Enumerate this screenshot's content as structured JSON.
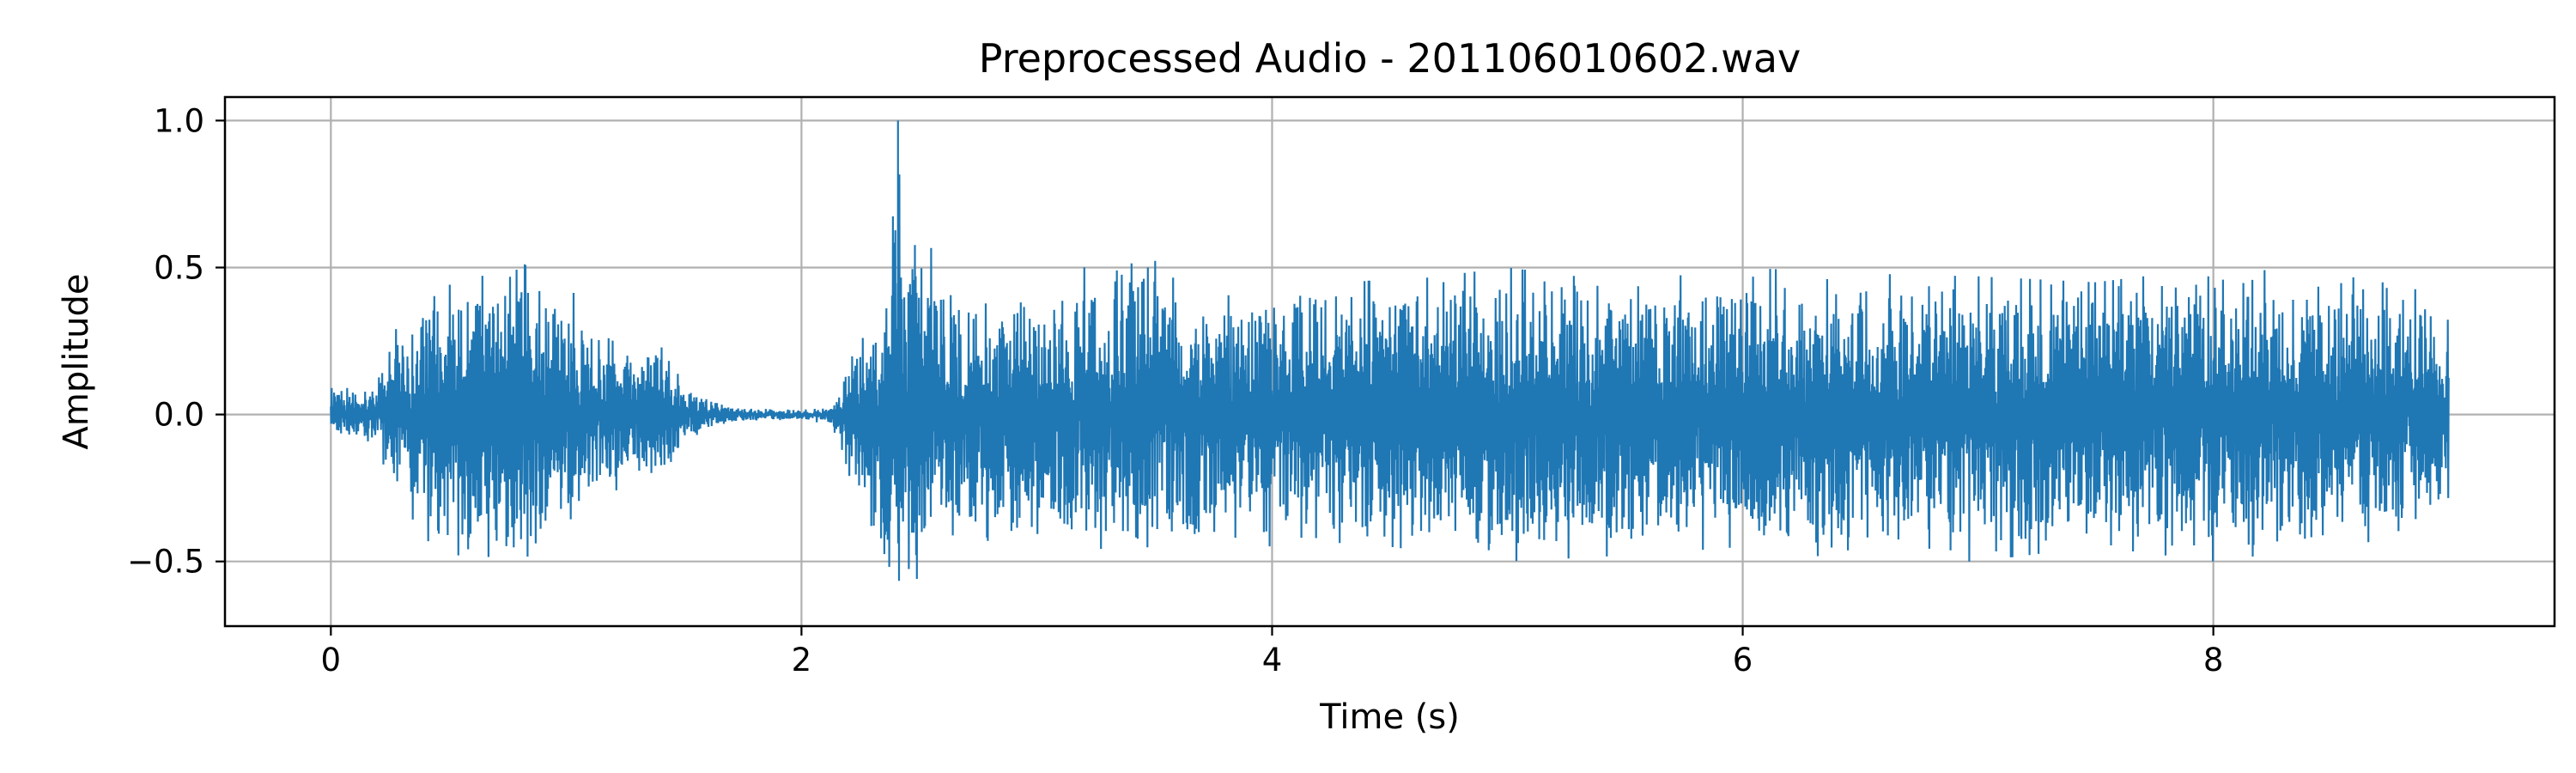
{
  "chart_data": {
    "type": "line",
    "title": "Preprocessed Audio - 201106010602.wav",
    "xlabel": "Time (s)",
    "ylabel": "Amplitude",
    "xlim": [
      -0.45,
      9.45
    ],
    "ylim": [
      -0.72,
      1.08
    ],
    "xticks": [
      0,
      2,
      4,
      6,
      8
    ],
    "xtick_labels": [
      "0",
      "2",
      "4",
      "6",
      "8"
    ],
    "yticks": [
      -0.5,
      0.0,
      0.5,
      1.0
    ],
    "ytick_labels": [
      "−0.5",
      "0.0",
      "0.5",
      "1.0"
    ],
    "grid": true,
    "legend": "none",
    "colors": {
      "line": "#1f77b4",
      "grid": "#b0b0b0",
      "axes": "#000000"
    },
    "series": [
      {
        "duration_s": 9.0,
        "envelope": {
          "t": [
            0.0,
            0.1,
            0.2,
            0.25,
            0.3,
            0.4,
            0.5,
            0.6,
            0.7,
            0.8,
            0.9,
            1.0,
            1.05,
            1.1,
            1.2,
            1.3,
            1.4,
            1.5,
            1.6,
            1.7,
            1.8,
            1.9,
            2.0,
            2.1,
            2.15,
            2.2,
            2.25,
            2.3,
            2.35,
            2.4,
            2.45,
            2.5,
            2.55,
            2.6,
            2.7,
            2.8,
            3.0,
            3.2,
            3.4,
            3.6,
            3.8,
            4.0,
            4.5,
            5.0,
            5.5,
            6.0,
            6.5,
            7.0,
            7.5,
            8.0,
            8.5,
            8.8,
            9.0
          ],
          "max": [
            0.09,
            0.09,
            0.12,
            0.28,
            0.3,
            0.4,
            0.5,
            0.45,
            0.5,
            0.53,
            0.45,
            0.5,
            0.38,
            0.3,
            0.25,
            0.22,
            0.25,
            0.1,
            0.05,
            0.03,
            0.02,
            0.02,
            0.02,
            0.02,
            0.05,
            0.2,
            0.25,
            0.3,
            0.3,
            1.0,
            0.57,
            0.58,
            0.57,
            0.42,
            0.38,
            0.45,
            0.4,
            0.5,
            0.6,
            0.45,
            0.4,
            0.48,
            0.45,
            0.5,
            0.45,
            0.5,
            0.48,
            0.47,
            0.45,
            0.5,
            0.48,
            0.47,
            0.32
          ],
          "min": [
            -0.06,
            -0.08,
            -0.1,
            -0.25,
            -0.3,
            -0.42,
            -0.5,
            -0.45,
            -0.5,
            -0.53,
            -0.4,
            -0.42,
            -0.35,
            -0.3,
            -0.28,
            -0.2,
            -0.25,
            -0.1,
            -0.05,
            -0.03,
            -0.02,
            -0.02,
            -0.02,
            -0.03,
            -0.08,
            -0.22,
            -0.3,
            -0.4,
            -0.63,
            -0.63,
            -0.6,
            -0.55,
            -0.45,
            -0.42,
            -0.4,
            -0.45,
            -0.42,
            -0.45,
            -0.48,
            -0.45,
            -0.42,
            -0.45,
            -0.45,
            -0.5,
            -0.48,
            -0.45,
            -0.5,
            -0.5,
            -0.45,
            -0.5,
            -0.45,
            -0.42,
            -0.38
          ]
        }
      }
    ]
  }
}
